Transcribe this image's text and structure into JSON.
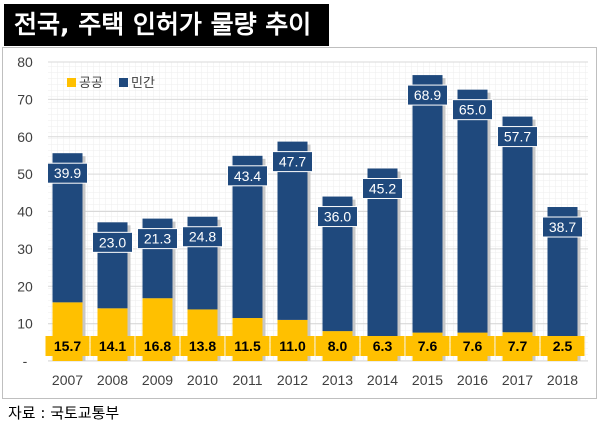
{
  "header": {
    "title": "전국, 주택 인허가 물량 추이"
  },
  "footer": {
    "source": "자료 : 국토교통부"
  },
  "colors": {
    "public": "#FFC000",
    "private": "#1F497D",
    "grid": "#d9d9d9",
    "label_bg_private": "#1F497D",
    "label_bg_public": "#FFC000"
  },
  "chart_data": {
    "type": "bar",
    "stacked": true,
    "title": "",
    "xlabel": "",
    "ylabel": "",
    "categories": [
      "2007",
      "2008",
      "2009",
      "2010",
      "2011",
      "2012",
      "2013",
      "2014",
      "2015",
      "2016",
      "2017",
      "2018"
    ],
    "series": [
      {
        "name": "공공",
        "values": [
          15.7,
          14.1,
          16.8,
          13.8,
          11.5,
          11.0,
          8.0,
          6.3,
          7.6,
          7.6,
          7.7,
          2.5
        ]
      },
      {
        "name": "민간",
        "values": [
          39.9,
          23.0,
          21.3,
          24.8,
          43.4,
          47.7,
          36.0,
          45.2,
          68.9,
          65.0,
          57.7,
          38.7
        ]
      }
    ],
    "data_labels": {
      "public": [
        "15.7",
        "14.1",
        "16.8",
        "13.8",
        "11.5",
        "11.0",
        "8.0",
        "6.3",
        "7.6",
        "7.6",
        "7.7",
        "2.5"
      ],
      "private": [
        "39.9",
        "23.0",
        "21.3",
        "24.8",
        "43.4",
        "47.7",
        "36.0",
        "45.2",
        "68.9",
        "65.0",
        "57.7",
        "38.7"
      ]
    },
    "ylim": [
      0,
      80
    ],
    "yticks": [
      "-",
      "10",
      "20",
      "30",
      "40",
      "50",
      "60",
      "70",
      "80"
    ],
    "grid": true,
    "legend_position": "top-left"
  }
}
